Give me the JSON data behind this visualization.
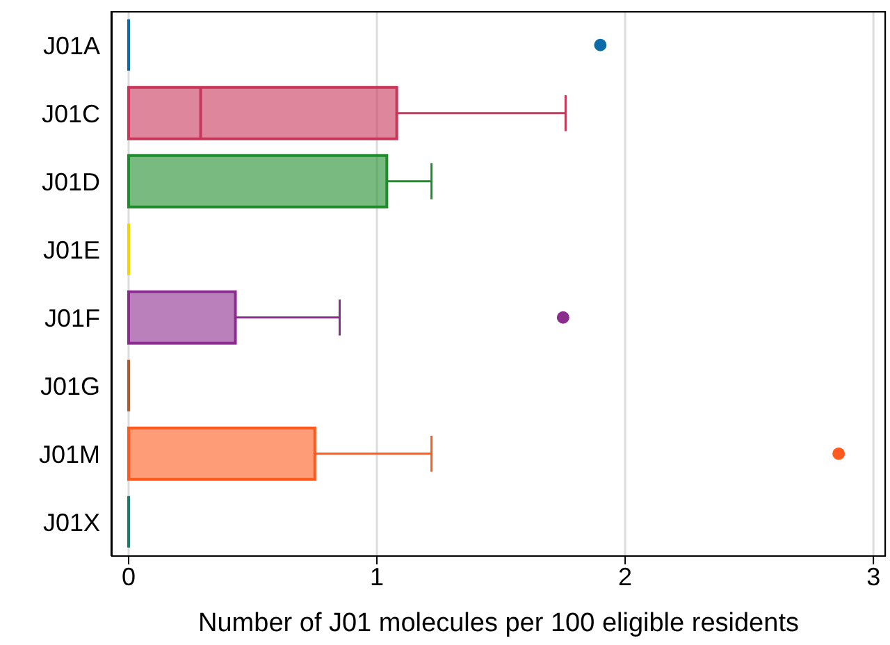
{
  "chart_data": {
    "type": "box",
    "orientation": "horizontal",
    "xlabel": "Number of J01 molecules per 100 eligible residents",
    "categories": [
      "J01A",
      "J01C",
      "J01D",
      "J01E",
      "J01F",
      "J01G",
      "J01M",
      "J01X"
    ],
    "colors": [
      "#0c6ba8",
      "#c8365a",
      "#1e8c2a",
      "#f2d600",
      "#8b2c8f",
      "#b05a30",
      "#ff5a1e",
      "#1a7a6a"
    ],
    "boxes": [
      {
        "low": 0,
        "q1": 0,
        "median": 0,
        "q3": 0,
        "high": 0,
        "outliers": [
          1.9
        ]
      },
      {
        "low": 0,
        "q1": 0,
        "median": 0.29,
        "q3": 1.08,
        "high": 1.76
      },
      {
        "low": 0,
        "q1": 0,
        "median": 0,
        "q3": 1.04,
        "high": 1.22
      },
      {
        "low": 0,
        "q1": 0,
        "median": 0,
        "q3": 0,
        "high": 0
      },
      {
        "low": 0,
        "q1": 0,
        "median": 0,
        "q3": 0.43,
        "high": 0.85,
        "outliers": [
          1.75
        ]
      },
      {
        "low": 0,
        "q1": 0,
        "median": 0,
        "q3": 0,
        "high": 0
      },
      {
        "low": 0,
        "q1": 0,
        "median": 0,
        "q3": 0.75,
        "high": 1.22,
        "outliers": [
          2.86
        ]
      },
      {
        "low": 0,
        "q1": 0,
        "median": 0,
        "q3": 0,
        "high": 0
      }
    ],
    "xlim": [
      -0.07,
      3.05
    ],
    "xticks": [
      0,
      1,
      2,
      3
    ],
    "grid": "x"
  }
}
